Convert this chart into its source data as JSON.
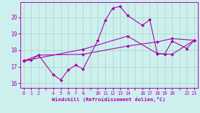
{
  "xlabel": "Windchill (Refroidissement éolien,°C)",
  "background_color": "#cdf0ee",
  "grid_color": "#aad8cc",
  "line_color": "#aa00aa",
  "xlim": [
    -0.5,
    23.5
  ],
  "ylim": [
    15.7,
    20.9
  ],
  "yticks": [
    16,
    17,
    18,
    19,
    20
  ],
  "xtick_positions": [
    0,
    1,
    2,
    3,
    4,
    5,
    6,
    7,
    8,
    9,
    10,
    11,
    12,
    13,
    14,
    15,
    16,
    17,
    18,
    19,
    20,
    21,
    22,
    23
  ],
  "xtick_labels_shown": {
    "0": "0",
    "1": "1",
    "2": "2",
    "4": "4",
    "5": "5",
    "6": "6",
    "7": "7",
    "8": "8",
    "10": "10",
    "11": "11",
    "12": "12",
    "13": "13",
    "14": "14",
    "16": "16",
    "17": "17",
    "18": "18",
    "19": "19",
    "20": "20",
    "22": "22",
    "23": "23"
  },
  "series1": [
    [
      0,
      17.35
    ],
    [
      1,
      17.4
    ],
    [
      2,
      17.7
    ],
    [
      4,
      16.5
    ],
    [
      5,
      16.2
    ],
    [
      6,
      16.8
    ],
    [
      7,
      17.1
    ],
    [
      8,
      16.85
    ],
    [
      10,
      18.6
    ],
    [
      11,
      19.8
    ],
    [
      12,
      20.55
    ],
    [
      13,
      20.65
    ],
    [
      14,
      20.1
    ],
    [
      16,
      19.5
    ],
    [
      17,
      19.85
    ],
    [
      18,
      17.8
    ],
    [
      19,
      17.75
    ],
    [
      20,
      18.55
    ],
    [
      22,
      18.1
    ],
    [
      23,
      18.6
    ]
  ],
  "series2": [
    [
      0,
      17.35
    ],
    [
      2,
      17.7
    ],
    [
      8,
      17.75
    ],
    [
      14,
      18.25
    ],
    [
      18,
      18.5
    ],
    [
      20,
      18.7
    ],
    [
      23,
      18.6
    ]
  ],
  "series3": [
    [
      0,
      17.35
    ],
    [
      8,
      18.05
    ],
    [
      14,
      18.85
    ],
    [
      18,
      17.8
    ],
    [
      20,
      17.75
    ],
    [
      23,
      18.6
    ]
  ]
}
